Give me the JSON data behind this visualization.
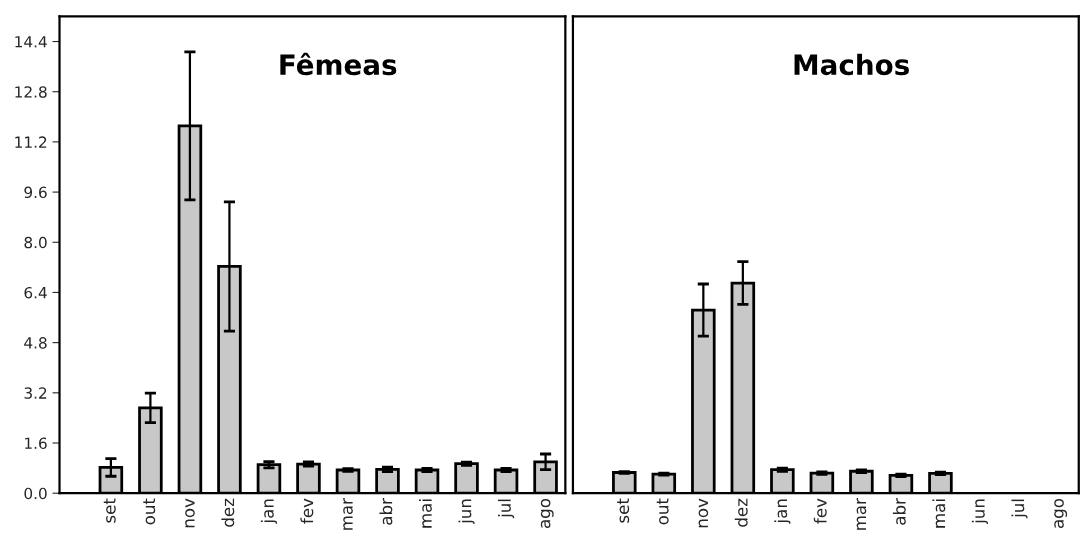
{
  "chart_data": [
    {
      "type": "bar",
      "title": "Fêmeas",
      "categories": [
        "set",
        "out",
        "nov",
        "dez",
        "jan",
        "fev",
        "mar",
        "abr",
        "mai",
        "jun",
        "jul",
        "ago"
      ],
      "color": "#c8c8c8",
      "values": [
        0.82,
        2.72,
        11.71,
        7.23,
        0.91,
        0.93,
        0.74,
        0.76,
        0.74,
        0.94,
        0.74,
        1.0
      ],
      "errors": [
        0.28,
        0.47,
        2.36,
        2.06,
        0.1,
        0.07,
        0.04,
        0.07,
        0.05,
        0.05,
        0.05,
        0.25
      ],
      "ylim": [
        0,
        15.2
      ],
      "yticks": [
        {
          "value": 0,
          "label": "0.0"
        },
        1.6,
        3.2,
        4.8,
        6.4,
        {
          "value": 8,
          "label": "8.0"
        },
        9.6,
        11.2,
        12.8,
        14.4
      ],
      "grid": false
    },
    {
      "type": "bar",
      "title": "Machos",
      "categories": [
        "set",
        "out",
        "nov",
        "dez",
        "jan",
        "fev",
        "mar",
        "abr",
        "mai",
        "jun",
        "jul",
        "ago"
      ],
      "color": "#c8c8c8",
      "values": [
        0.66,
        0.61,
        5.84,
        6.7,
        0.75,
        0.64,
        0.7,
        0.57,
        0.63,
        0,
        0,
        0
      ],
      "errors": [
        0.03,
        0.03,
        0.83,
        0.68,
        0.05,
        0.04,
        0.04,
        0.04,
        0.04,
        0,
        0,
        0
      ],
      "ylim": [
        0,
        15.2
      ],
      "tick_labels": "x",
      "grid": false
    }
  ]
}
